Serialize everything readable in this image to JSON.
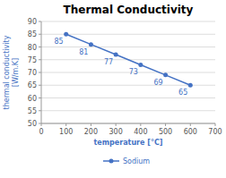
{
  "chart_data": {
    "type": "line",
    "title": "Thermal Conductivity",
    "xlabel": "temperature [°C]",
    "ylabel": "thermal conductivity\n[W/m.K]",
    "x": [
      100,
      200,
      300,
      400,
      500,
      600
    ],
    "series": [
      {
        "name": "Sodium",
        "color": "#4472C4",
        "marker": "circle",
        "values": [
          85,
          81,
          77,
          73,
          69,
          65
        ]
      }
    ],
    "xlim": [
      0,
      700
    ],
    "ylim": [
      50,
      90
    ],
    "xticks": [
      0,
      100,
      200,
      300,
      400,
      500,
      600,
      700
    ],
    "yticks": [
      50,
      55,
      60,
      65,
      70,
      75,
      80,
      85,
      90
    ],
    "grid": "y",
    "legend": "bottom",
    "data_labels": true
  }
}
